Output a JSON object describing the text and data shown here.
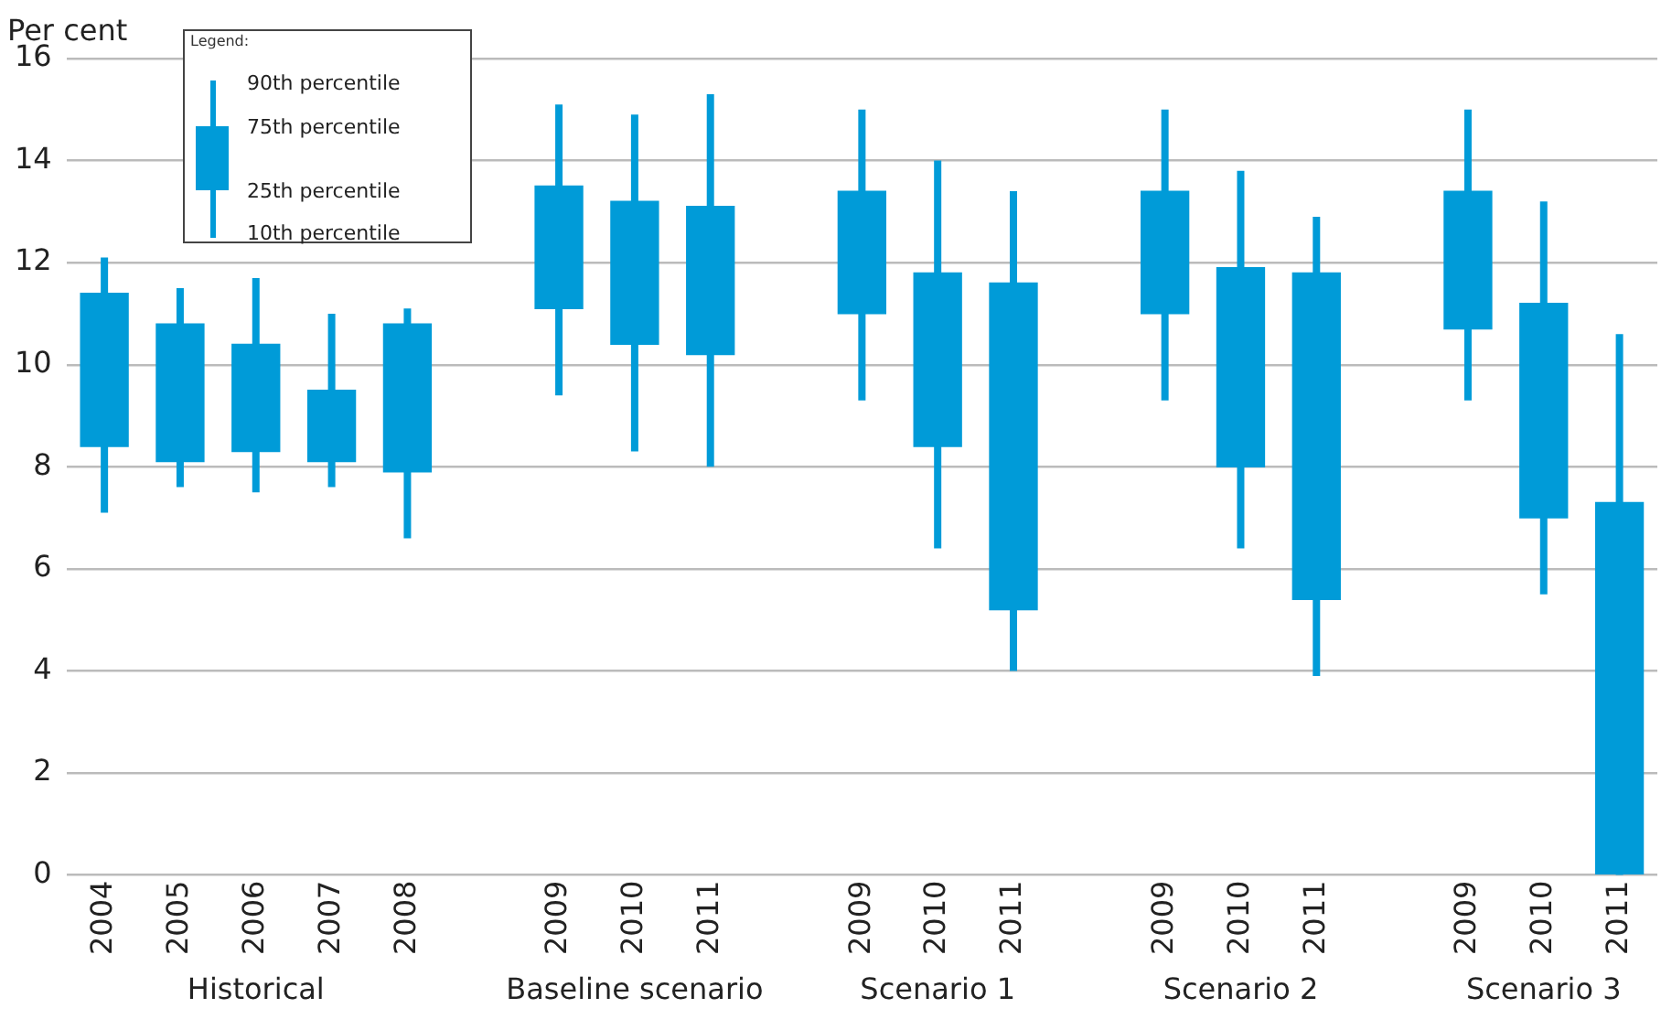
{
  "chart_data": {
    "type": "box",
    "ylabel": "Per cent",
    "legend_title": "Legend:",
    "annotations": [
      "90th percentile",
      "75th percentile",
      "25th percentile",
      "10th percentile",
      "Historical",
      "Baseline scenario",
      "Scenario 1",
      "Scenario 2",
      "Scenario 3"
    ],
    "categories": [
      "2004",
      "2005",
      "2006",
      "2007",
      "2008",
      null,
      "2009",
      "2010",
      "2011",
      null,
      "2009",
      "2010",
      "2011",
      null,
      "2009",
      "2010",
      "2011",
      null,
      "2009",
      "2010",
      "2011"
    ],
    "color": "#009bd8",
    "boxes": [
      {
        "low": 7.1,
        "q1": 8.4,
        "q3": 11.4,
        "high": 12.1
      },
      {
        "low": 7.6,
        "q1": 8.1,
        "q3": 10.8,
        "high": 11.5
      },
      {
        "low": 7.5,
        "q1": 8.3,
        "q3": 10.4,
        "high": 11.7
      },
      {
        "low": 7.6,
        "q1": 8.1,
        "q3": 9.5,
        "high": 11.0
      },
      {
        "low": 6.6,
        "q1": 7.9,
        "q3": 10.8,
        "high": 11.1
      },
      null,
      {
        "low": 9.4,
        "q1": 11.1,
        "q3": 13.5,
        "high": 15.1
      },
      {
        "low": 8.3,
        "q1": 10.4,
        "q3": 13.2,
        "high": 14.9
      },
      {
        "low": 8.0,
        "q1": 10.2,
        "q3": 13.1,
        "high": 15.3
      },
      null,
      {
        "low": 9.3,
        "q1": 11.0,
        "q3": 13.4,
        "high": 15.0
      },
      {
        "low": 6.4,
        "q1": 8.4,
        "q3": 11.8,
        "high": 14.0
      },
      {
        "low": 4.0,
        "q1": 5.2,
        "q3": 11.6,
        "high": 13.4
      },
      null,
      {
        "low": 9.3,
        "q1": 11.0,
        "q3": 13.4,
        "high": 15.0
      },
      {
        "low": 6.4,
        "q1": 8.0,
        "q3": 11.9,
        "high": 13.8
      },
      {
        "low": 3.9,
        "q1": 5.4,
        "q3": 11.8,
        "high": 12.9
      },
      null,
      {
        "low": 9.3,
        "q1": 10.7,
        "q3": 13.4,
        "high": 15.0
      },
      {
        "low": 5.5,
        "q1": 7.0,
        "q3": 11.2,
        "high": 13.2
      },
      {
        "low": 0,
        "q1": 0,
        "q3": 7.3,
        "high": 10.6
      }
    ],
    "ylim": [
      0,
      16
    ],
    "yticks": [
      0,
      2,
      4,
      6,
      8,
      10,
      12,
      14,
      16
    ],
    "grid": "y"
  }
}
